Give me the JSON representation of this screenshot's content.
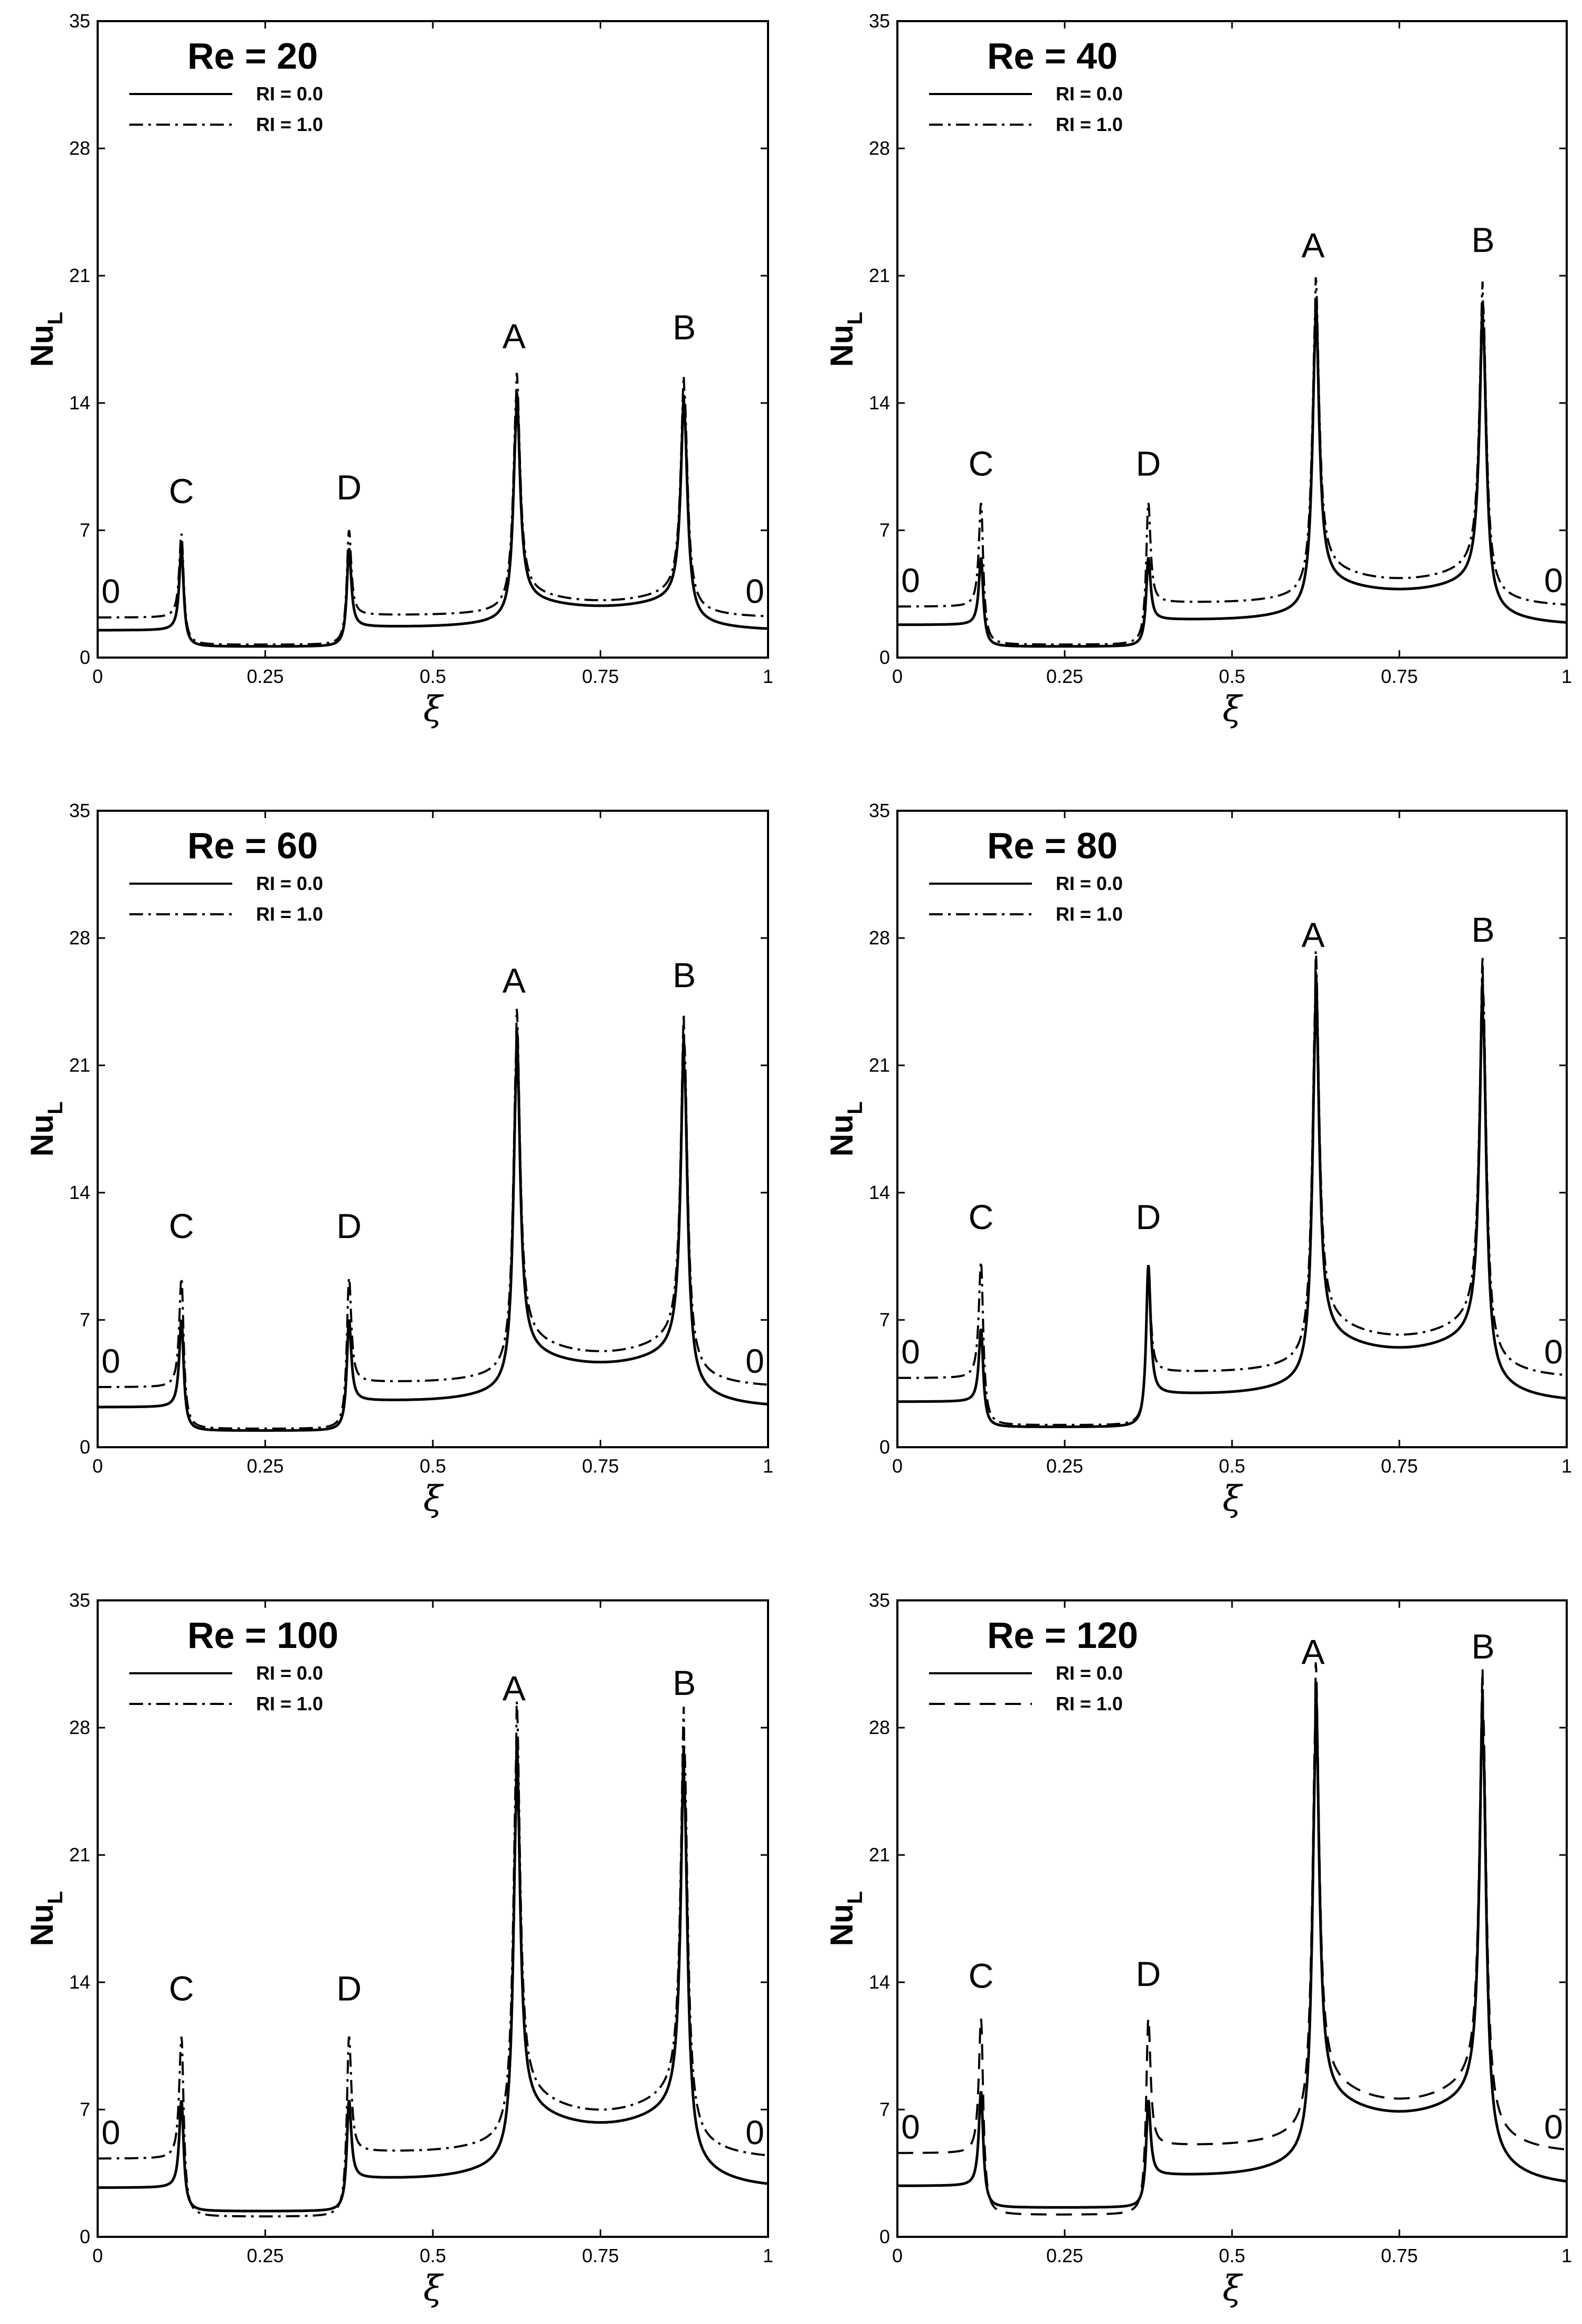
{
  "chart_data": [
    {
      "type": "line",
      "title": "Re = 20",
      "xlabel": "ξ",
      "ylabel": "Nu",
      "ylabel_sub": "L",
      "xlim": [
        0,
        1
      ],
      "ylim": [
        0,
        35
      ],
      "xticks": [
        "0",
        "0.25",
        "0.5",
        "0.75",
        "1"
      ],
      "yticks": [
        "0",
        "7",
        "14",
        "21",
        "28",
        "35"
      ],
      "series": [
        {
          "name": "Ri = 0.0",
          "style": "solid",
          "baseline": 1.5,
          "min_mid": 0.6,
          "center_min": 2.8,
          "peak_A": 14,
          "peak_B": 14,
          "peak_C": 6.0,
          "peak_D": 6.0
        },
        {
          "name": "Ri = 1.0",
          "style": "dash-dot",
          "baseline": 2.2,
          "min_mid": 0.7,
          "center_min": 3.1,
          "peak_A": 15,
          "peak_B": 15,
          "peak_C": 6.8,
          "peak_D": 7.0
        }
      ],
      "annotations": {
        "A": "A",
        "B": "B",
        "C": "C",
        "D": "D",
        "left": "0",
        "right": "0"
      },
      "peak_labels_y": {
        "A": 17,
        "B": 17.5,
        "C": 8.5,
        "D": 8.7
      }
    },
    {
      "type": "line",
      "title": "Re = 40",
      "xlabel": "ξ",
      "ylabel": "Nu",
      "ylabel_sub": "L",
      "xlim": [
        0,
        1
      ],
      "ylim": [
        0,
        35
      ],
      "xticks": [
        "0",
        "0.25",
        "0.5",
        "0.75",
        "1"
      ],
      "yticks": [
        "0",
        "7",
        "14",
        "21",
        "28",
        "35"
      ],
      "series": [
        {
          "name": "Ri = 0.0",
          "style": "solid",
          "baseline": 1.8,
          "min_mid": 0.6,
          "center_min": 3.7,
          "peak_A": 19,
          "peak_B": 19,
          "peak_C": 5.5,
          "peak_D": 5.5
        },
        {
          "name": "Ri = 1.0",
          "style": "dash-dot",
          "baseline": 2.8,
          "min_mid": 0.7,
          "center_min": 4.3,
          "peak_A": 20,
          "peak_B": 20,
          "peak_C": 8.5,
          "peak_D": 8.5
        }
      ],
      "annotations": {
        "A": "A",
        "B": "B",
        "C": "C",
        "D": "D",
        "left": "0",
        "right": "0"
      },
      "peak_labels_y": {
        "A": 22,
        "B": 22.3,
        "C": 10,
        "D": 10
      }
    },
    {
      "type": "line",
      "title": "Re = 60",
      "xlabel": "ξ",
      "ylabel": "Nu",
      "ylabel_sub": "L",
      "xlim": [
        0,
        1
      ],
      "ylim": [
        0,
        35
      ],
      "xticks": [
        "0",
        "0.25",
        "0.5",
        "0.75",
        "1"
      ],
      "yticks": [
        "0",
        "7",
        "14",
        "21",
        "28",
        "35"
      ],
      "series": [
        {
          "name": "Ri = 0.0",
          "style": "solid",
          "baseline": 2.2,
          "min_mid": 0.9,
          "center_min": 4.6,
          "peak_A": 22,
          "peak_B": 22,
          "peak_C": 7.0,
          "peak_D": 7.0
        },
        {
          "name": "Ri = 1.0",
          "style": "dash-dot",
          "baseline": 3.3,
          "min_mid": 1.0,
          "center_min": 5.2,
          "peak_A": 23,
          "peak_B": 23,
          "peak_C": 9.3,
          "peak_D": 9.3
        }
      ],
      "annotations": {
        "A": "A",
        "B": "B",
        "C": "C",
        "D": "D",
        "left": "0",
        "right": "0"
      },
      "peak_labels_y": {
        "A": 25,
        "B": 25.3,
        "C": 11.5,
        "D": 11.5
      }
    },
    {
      "type": "line",
      "title": "Re = 80",
      "xlabel": "ξ",
      "ylabel": "Nu",
      "ylabel_sub": "L",
      "xlim": [
        0,
        1
      ],
      "ylim": [
        0,
        35
      ],
      "xticks": [
        "0",
        "0.25",
        "0.5",
        "0.75",
        "1"
      ],
      "yticks": [
        "0",
        "7",
        "14",
        "21",
        "28",
        "35"
      ],
      "series": [
        {
          "name": "Ri = 0.0",
          "style": "solid",
          "baseline": 2.5,
          "min_mid": 1.1,
          "center_min": 5.4,
          "peak_A": 25,
          "peak_B": 25,
          "peak_C": 6.5,
          "peak_D": 10.0
        },
        {
          "name": "Ri = 1.0",
          "style": "dash-dot",
          "baseline": 3.8,
          "min_mid": 1.2,
          "center_min": 6.1,
          "peak_A": 26,
          "peak_B": 26,
          "peak_C": 10.2,
          "peak_D": 10.0
        }
      ],
      "annotations": {
        "A": "A",
        "B": "B",
        "C": "C",
        "D": "D",
        "left": "0",
        "right": "0"
      },
      "peak_labels_y": {
        "A": 27.5,
        "B": 27.8,
        "C": 12,
        "D": 12
      }
    },
    {
      "type": "line",
      "title": "Re = 100",
      "xlabel": "ξ",
      "ylabel": "Nu",
      "ylabel_sub": "L",
      "xlim": [
        0,
        1
      ],
      "ylim": [
        0,
        35
      ],
      "xticks": [
        "0",
        "0.25",
        "0.5",
        "0.75",
        "1"
      ],
      "yticks": [
        "0",
        "7",
        "14",
        "21",
        "28",
        "35"
      ],
      "series": [
        {
          "name": "Ri = 0.0",
          "style": "solid",
          "baseline": 2.7,
          "min_mid": 1.4,
          "center_min": 6.2,
          "peak_A": 26,
          "peak_B": 26,
          "peak_C": 7.5,
          "peak_D": 7.5
        },
        {
          "name": "Ri = 1.0",
          "style": "dash-dot",
          "baseline": 4.3,
          "min_mid": 1.1,
          "center_min": 6.9,
          "peak_A": 28,
          "peak_B": 28,
          "peak_C": 11.0,
          "peak_D": 11.0
        }
      ],
      "annotations": {
        "A": "A",
        "B": "B",
        "C": "C",
        "D": "D",
        "left": "0",
        "right": "0"
      },
      "peak_labels_y": {
        "A": 29.5,
        "B": 29.8,
        "C": 13,
        "D": 13
      }
    },
    {
      "type": "line",
      "title": "Re = 120",
      "xlabel": "ξ",
      "ylabel": "Nu",
      "ylabel_sub": "L",
      "xlim": [
        0,
        1
      ],
      "ylim": [
        0,
        35
      ],
      "xticks": [
        "0",
        "0.25",
        "0.5",
        "0.75",
        "1"
      ],
      "yticks": [
        "0",
        "7",
        "14",
        "21",
        "28",
        "35"
      ],
      "series": [
        {
          "name": "Ri = 0.0",
          "style": "solid",
          "baseline": 2.8,
          "min_mid": 1.6,
          "center_min": 6.8,
          "peak_A": 29,
          "peak_B": 29,
          "peak_C": 8.0,
          "peak_D": 7.5
        },
        {
          "name": "Ri = 1.0",
          "style": "dash",
          "baseline": 4.6,
          "min_mid": 1.2,
          "center_min": 7.5,
          "peak_A": 30,
          "peak_B": 30,
          "peak_C": 12.0,
          "peak_D": 12.0
        }
      ],
      "annotations": {
        "A": "A",
        "B": "B",
        "C": "C",
        "D": "D",
        "left": "0",
        "right": "0"
      },
      "peak_labels_y": {
        "A": 31.5,
        "B": 31.8,
        "C": 13.7,
        "D": 13.8
      }
    }
  ],
  "legend_labels": [
    "RI = 0.0",
    "RI = 1.0"
  ]
}
